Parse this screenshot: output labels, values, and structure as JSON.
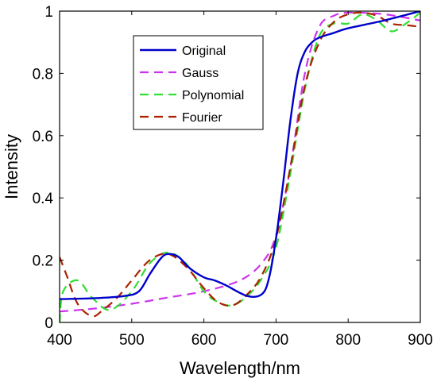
{
  "chart_data": {
    "type": "line",
    "xlabel": "Wavelength/nm",
    "ylabel": "Intensity",
    "xlim": [
      400,
      900
    ],
    "ylim": [
      0,
      1
    ],
    "xticks": [
      400,
      500,
      600,
      700,
      800,
      900
    ],
    "yticks": [
      0,
      0.2,
      0.4,
      0.6,
      0.8,
      1
    ],
    "ytick_labels": [
      "0",
      "0.2",
      "0.4",
      "0.6",
      "0.8",
      "1"
    ],
    "grid": false,
    "legend_position": "top-left",
    "series": [
      {
        "name": "Original",
        "color": "#0000cc",
        "dash": "solid",
        "x": [
          400,
          450,
          490,
          510,
          525,
          540,
          550,
          565,
          580,
          600,
          615,
          630,
          660,
          680,
          690,
          700,
          710,
          720,
          730,
          740,
          750,
          760,
          780,
          800,
          850,
          900
        ],
        "y": [
          0.075,
          0.078,
          0.085,
          0.1,
          0.155,
          0.205,
          0.22,
          0.21,
          0.175,
          0.145,
          0.135,
          0.12,
          0.085,
          0.09,
          0.14,
          0.27,
          0.45,
          0.65,
          0.8,
          0.87,
          0.9,
          0.915,
          0.93,
          0.945,
          0.97,
          1.0
        ]
      },
      {
        "name": "Gauss",
        "color": "#cc33ee",
        "dash": "dashed",
        "x": [
          400,
          450,
          500,
          550,
          600,
          650,
          680,
          700,
          720,
          740,
          760,
          780,
          800,
          850,
          900
        ],
        "y": [
          0.035,
          0.045,
          0.06,
          0.08,
          0.1,
          0.135,
          0.19,
          0.28,
          0.5,
          0.8,
          0.95,
          0.985,
          0.995,
          0.99,
          0.97
        ]
      },
      {
        "name": "Polynomial",
        "color": "#33dd33",
        "dash": "dashed",
        "x": [
          400,
          405,
          425,
          445,
          470,
          500,
          525,
          550,
          575,
          600,
          620,
          640,
          660,
          680,
          700,
          720,
          740,
          760,
          780,
          800,
          820,
          840,
          860,
          880,
          900
        ],
        "y": [
          0.0,
          0.1,
          0.135,
          0.08,
          0.04,
          0.1,
          0.19,
          0.225,
          0.19,
          0.1,
          0.065,
          0.055,
          0.085,
          0.14,
          0.24,
          0.48,
          0.75,
          0.92,
          0.96,
          0.96,
          0.99,
          0.97,
          0.935,
          0.96,
          0.995
        ]
      },
      {
        "name": "Fourier",
        "color": "#aa2200",
        "dash": "dashed",
        "x": [
          400,
          410,
          425,
          445,
          460,
          480,
          500,
          525,
          550,
          575,
          600,
          620,
          640,
          660,
          680,
          700,
          720,
          740,
          760,
          780,
          800,
          820,
          840,
          860,
          880,
          900
        ],
        "y": [
          0.21,
          0.15,
          0.06,
          0.02,
          0.04,
          0.08,
          0.135,
          0.2,
          0.22,
          0.18,
          0.11,
          0.065,
          0.055,
          0.09,
          0.15,
          0.27,
          0.5,
          0.76,
          0.9,
          0.965,
          0.99,
          0.995,
          0.985,
          0.96,
          0.955,
          0.95
        ]
      }
    ]
  }
}
